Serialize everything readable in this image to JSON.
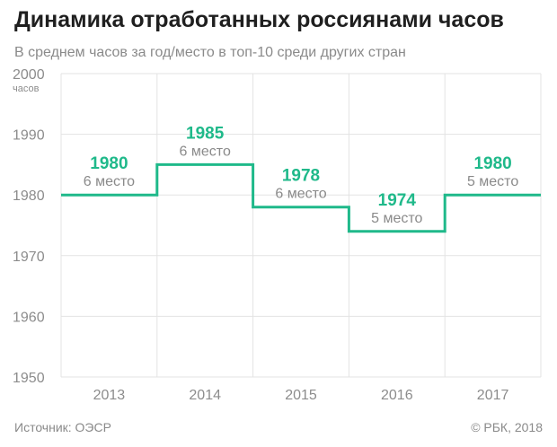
{
  "header": {
    "title": "Динамика отработанных россиянами часов",
    "subtitle": "В среднем часов за год/место в топ-10 среди других стран"
  },
  "footer": {
    "source": "Источник: ОЭСР",
    "copyright": "© РБК, 2018"
  },
  "colors": {
    "accent": "#1fb98a",
    "grid": "#e3e3e3",
    "axis_text": "#8c8c8c"
  },
  "chart_data": {
    "type": "line",
    "step": true,
    "title": "Динамика отработанных россиянами часов",
    "subtitle": "В среднем часов за год/место в топ-10 среди других стран",
    "y_unit": "часов",
    "ylim": [
      1950,
      2000
    ],
    "y_ticks": [
      1950,
      1960,
      1970,
      1980,
      1990,
      2000
    ],
    "categories": [
      "2013",
      "2014",
      "2015",
      "2016",
      "2017"
    ],
    "values": [
      1980,
      1985,
      1978,
      1974,
      1980
    ],
    "rank_labels": [
      "6 место",
      "6 место",
      "6 место",
      "5 место",
      "5 место"
    ],
    "grid": true,
    "legend": "none"
  }
}
